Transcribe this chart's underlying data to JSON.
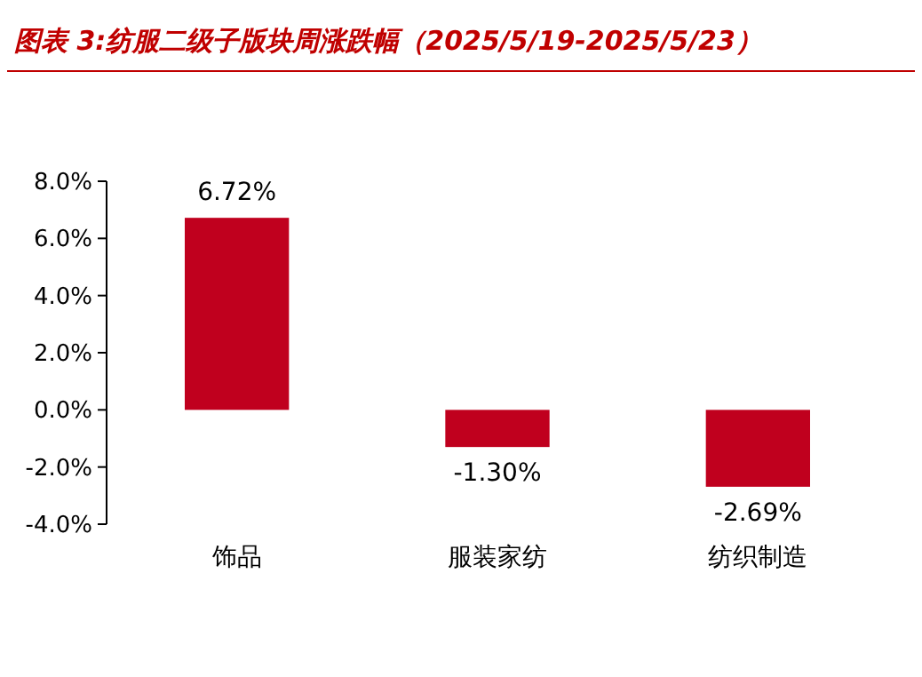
{
  "chart_data": {
    "type": "bar",
    "title": "图表 3:纺服二级子版块周涨跌幅（2025/5/19-2025/5/23）",
    "categories": [
      "饰品",
      "服装家纺",
      "纺织制造"
    ],
    "values": [
      6.72,
      -1.3,
      -2.69
    ],
    "value_labels": [
      "6.72%",
      "-1.30%",
      "-2.69%"
    ],
    "color": "#c0001e",
    "ylim": [
      -4,
      8
    ],
    "yticks": [
      {
        "value": -4,
        "label": "-4.0%"
      },
      {
        "value": -2,
        "label": "-2.0%"
      },
      {
        "value": 0,
        "label": "0.0%"
      },
      {
        "value": 2,
        "label": "2.0%"
      },
      {
        "value": 4,
        "label": "4.0%"
      },
      {
        "value": 6,
        "label": "6.0%"
      },
      {
        "value": 8,
        "label": "8.0%"
      }
    ]
  }
}
